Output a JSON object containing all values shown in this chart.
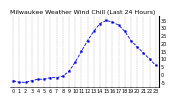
{
  "title": "Milwaukee Weather Wind Chill (Last 24 Hours)",
  "x": [
    0,
    1,
    2,
    3,
    4,
    5,
    6,
    7,
    8,
    9,
    10,
    11,
    12,
    13,
    14,
    15,
    16,
    17,
    18,
    19,
    20,
    21,
    22,
    23
  ],
  "y": [
    -4,
    -5,
    -5,
    -4,
    -3,
    -3,
    -2,
    -2,
    -1,
    2,
    8,
    15,
    22,
    28,
    33,
    35,
    34,
    32,
    28,
    22,
    18,
    14,
    10,
    6
  ],
  "line_color": "#0000dd",
  "marker": "s",
  "marker_size": 1.2,
  "linestyle": "--",
  "linewidth": 0.6,
  "ylim": [
    -8,
    38
  ],
  "yticks": [
    -5,
    0,
    5,
    10,
    15,
    20,
    25,
    30,
    35
  ],
  "ytick_labels": [
    "-5",
    "0",
    "5",
    "10",
    "15",
    "20",
    "25",
    "30",
    "35"
  ],
  "xlim": [
    -0.5,
    23.5
  ],
  "xticks": [
    0,
    1,
    2,
    3,
    4,
    5,
    6,
    7,
    8,
    9,
    10,
    11,
    12,
    13,
    14,
    15,
    16,
    17,
    18,
    19,
    20,
    21,
    22,
    23
  ],
  "bg_color": "#ffffff",
  "grid_color": "#999999",
  "title_fontsize": 4.5,
  "tick_fontsize": 3.5
}
